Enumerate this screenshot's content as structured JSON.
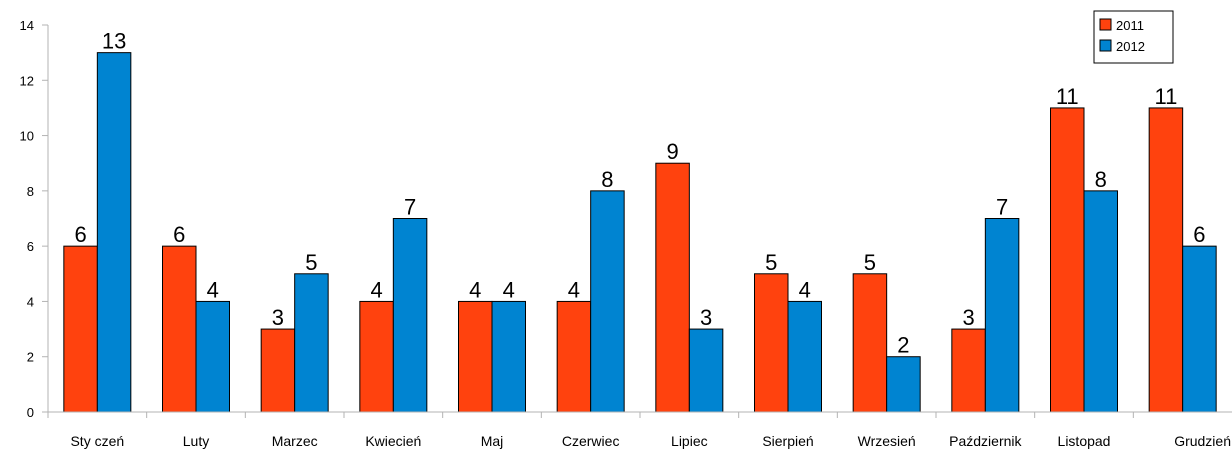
{
  "chart_data": {
    "type": "bar",
    "categories": [
      "Sty czeń",
      "Luty",
      "Marzec",
      "Kwiecień",
      "Maj",
      "Czerwiec",
      "Lipiec",
      "Sierpień",
      "Wrzesień",
      "Październik",
      "Listopad",
      "Grudzień"
    ],
    "series": [
      {
        "name": "2011",
        "color": "#ff420e",
        "values": [
          6,
          6,
          3,
          4,
          4,
          4,
          9,
          5,
          5,
          3,
          11,
          11
        ]
      },
      {
        "name": "2012",
        "color": "#0084d1",
        "values": [
          13,
          4,
          5,
          7,
          4,
          8,
          3,
          4,
          2,
          7,
          8,
          6
        ]
      }
    ],
    "title": "",
    "xlabel": "",
    "ylabel": "",
    "ylim": [
      0,
      14
    ],
    "yticks": [
      0,
      2,
      4,
      6,
      8,
      10,
      12,
      14
    ],
    "grid": false,
    "legend": "top-right"
  }
}
